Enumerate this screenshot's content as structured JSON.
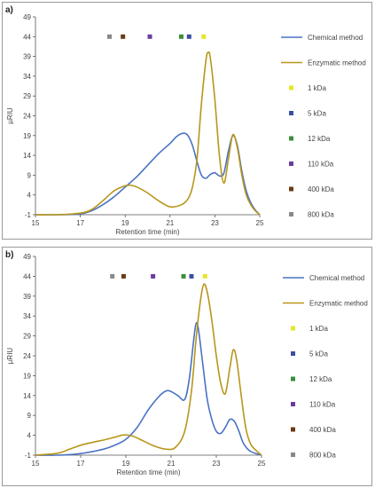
{
  "chart_data": [
    {
      "panel_label": "a)",
      "type": "line",
      "xlabel": "Retention time (min)",
      "ylabel": "µRIU",
      "xlim": [
        15,
        25
      ],
      "ylim": [
        -1,
        49
      ],
      "x_ticks": [
        15,
        17,
        19,
        21,
        23,
        25
      ],
      "y_ticks": [
        -1,
        4,
        9,
        14,
        19,
        24,
        29,
        34,
        39,
        44,
        49
      ],
      "grid": false,
      "legend_position": "right",
      "series": [
        {
          "name": "Chemical method",
          "color": "#4a72c4",
          "points": [
            [
              15,
              -1
            ],
            [
              16,
              -1
            ],
            [
              17,
              -0.8
            ],
            [
              17.5,
              0
            ],
            [
              18,
              1.5
            ],
            [
              18.5,
              3.5
            ],
            [
              19,
              6
            ],
            [
              19.5,
              8.5
            ],
            [
              20,
              11.5
            ],
            [
              20.5,
              14.5
            ],
            [
              21,
              17
            ],
            [
              21.3,
              18.8
            ],
            [
              21.6,
              19.6
            ],
            [
              21.8,
              19
            ],
            [
              22,
              16.5
            ],
            [
              22.2,
              12.5
            ],
            [
              22.4,
              9
            ],
            [
              22.6,
              8.2
            ],
            [
              22.8,
              9.2
            ],
            [
              23,
              9.6
            ],
            [
              23.2,
              8.8
            ],
            [
              23.4,
              9.5
            ],
            [
              23.6,
              15
            ],
            [
              23.8,
              19
            ],
            [
              24,
              16.5
            ],
            [
              24.2,
              10
            ],
            [
              24.4,
              5
            ],
            [
              24.6,
              2
            ],
            [
              24.8,
              0.2
            ],
            [
              25,
              -1
            ]
          ]
        },
        {
          "name": "Enzymatic method",
          "color": "#b8961a",
          "points": [
            [
              15,
              -1
            ],
            [
              16,
              -1
            ],
            [
              17,
              -0.6
            ],
            [
              17.5,
              0.3
            ],
            [
              18,
              2.5
            ],
            [
              18.5,
              5
            ],
            [
              19,
              6.3
            ],
            [
              19.3,
              6.4
            ],
            [
              19.6,
              5.8
            ],
            [
              20,
              4.5
            ],
            [
              20.5,
              2.5
            ],
            [
              21,
              1
            ],
            [
              21.5,
              1.5
            ],
            [
              21.8,
              3
            ],
            [
              22,
              6
            ],
            [
              22.2,
              13
            ],
            [
              22.4,
              27
            ],
            [
              22.6,
              38
            ],
            [
              22.7,
              40
            ],
            [
              22.8,
              38.5
            ],
            [
              23,
              28
            ],
            [
              23.2,
              14
            ],
            [
              23.4,
              7
            ],
            [
              23.6,
              13
            ],
            [
              23.8,
              19.2
            ],
            [
              24,
              16
            ],
            [
              24.2,
              9
            ],
            [
              24.4,
              4
            ],
            [
              24.6,
              1.5
            ],
            [
              24.8,
              0
            ],
            [
              25,
              -1
            ]
          ]
        }
      ],
      "markers": [
        {
          "name": "1 kDa",
          "color": "#e6e62a",
          "x": 22.5,
          "y": 44
        },
        {
          "name": "5 kDa",
          "color": "#3b4ea3",
          "x": 21.85,
          "y": 44
        },
        {
          "name": "12 kDa",
          "color": "#3c8c3c",
          "x": 21.5,
          "y": 44
        },
        {
          "name": "110 kDa",
          "color": "#6a3ca0",
          "x": 20.1,
          "y": 44
        },
        {
          "name": "400 kDa",
          "color": "#6b3a15",
          "x": 18.9,
          "y": 44
        },
        {
          "name": "800 kDa",
          "color": "#888888",
          "x": 18.3,
          "y": 44
        }
      ]
    },
    {
      "panel_label": "b)",
      "type": "line",
      "xlabel": "Retention time (min)",
      "ylabel": "µRIU",
      "xlim": [
        15,
        25
      ],
      "ylim": [
        -1,
        49
      ],
      "x_ticks": [
        15,
        17,
        19,
        21,
        23,
        25
      ],
      "y_ticks": [
        -1,
        4,
        9,
        14,
        19,
        24,
        29,
        34,
        39,
        44,
        49
      ],
      "grid": false,
      "legend_position": "right",
      "series": [
        {
          "name": "Chemical method",
          "color": "#4a72c4",
          "points": [
            [
              15,
              -1
            ],
            [
              16,
              -1
            ],
            [
              17,
              -0.6
            ],
            [
              18,
              0.5
            ],
            [
              18.5,
              1.5
            ],
            [
              19,
              3
            ],
            [
              19.5,
              6
            ],
            [
              20,
              10.5
            ],
            [
              20.5,
              14
            ],
            [
              20.8,
              15.2
            ],
            [
              21,
              15
            ],
            [
              21.3,
              14
            ],
            [
              21.6,
              13
            ],
            [
              21.8,
              18
            ],
            [
              22,
              28
            ],
            [
              22.1,
              32
            ],
            [
              22.2,
              31
            ],
            [
              22.4,
              22
            ],
            [
              22.6,
              13
            ],
            [
              22.8,
              8
            ],
            [
              23,
              5
            ],
            [
              23.2,
              4.5
            ],
            [
              23.4,
              6
            ],
            [
              23.6,
              8
            ],
            [
              23.8,
              7.5
            ],
            [
              24,
              5
            ],
            [
              24.2,
              2
            ],
            [
              24.5,
              0
            ],
            [
              25,
              -1
            ]
          ]
        },
        {
          "name": "Enzymatic method",
          "color": "#b8961a",
          "points": [
            [
              15,
              -1
            ],
            [
              16,
              -0.5
            ],
            [
              16.5,
              0.5
            ],
            [
              17,
              1.5
            ],
            [
              17.5,
              2.2
            ],
            [
              18,
              2.8
            ],
            [
              18.5,
              3.5
            ],
            [
              18.9,
              4.1
            ],
            [
              19.3,
              3.8
            ],
            [
              19.8,
              2.5
            ],
            [
              20.3,
              1.2
            ],
            [
              20.8,
              0.5
            ],
            [
              21.2,
              1
            ],
            [
              21.6,
              5
            ],
            [
              21.9,
              15
            ],
            [
              22.1,
              28
            ],
            [
              22.3,
              38
            ],
            [
              22.45,
              42
            ],
            [
              22.6,
              40
            ],
            [
              22.8,
              33
            ],
            [
              23,
              24
            ],
            [
              23.2,
              17
            ],
            [
              23.4,
              14.5
            ],
            [
              23.6,
              21
            ],
            [
              23.75,
              25.5
            ],
            [
              23.9,
              23
            ],
            [
              24.1,
              14
            ],
            [
              24.3,
              6
            ],
            [
              24.5,
              2
            ],
            [
              24.7,
              0.5
            ],
            [
              25,
              -1
            ]
          ]
        }
      ],
      "markers": [
        {
          "name": "1 kDa",
          "color": "#e6e62a",
          "x": 22.5,
          "y": 44
        },
        {
          "name": "5 kDa",
          "color": "#3b4ea3",
          "x": 21.9,
          "y": 44
        },
        {
          "name": "12 kDa",
          "color": "#3c8c3c",
          "x": 21.55,
          "y": 44
        },
        {
          "name": "110 kDa",
          "color": "#6a3ca0",
          "x": 20.2,
          "y": 44
        },
        {
          "name": "400 kDa",
          "color": "#6b3a15",
          "x": 18.9,
          "y": 44
        },
        {
          "name": "800 kDa",
          "color": "#888888",
          "x": 18.4,
          "y": 44
        }
      ]
    }
  ]
}
